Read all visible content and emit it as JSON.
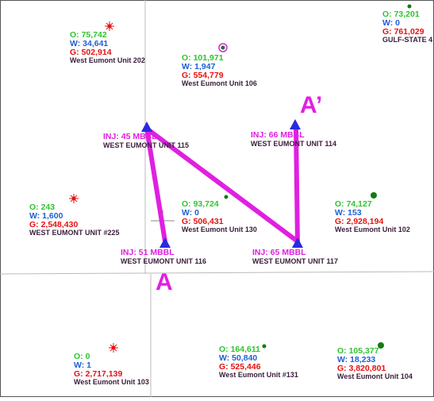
{
  "wells": [
    {
      "o": "O: 75,742",
      "w": "W: 34,641",
      "g": "G: 502,914",
      "name": "West Eumont Unit 202"
    },
    {
      "o": "O: 101,971",
      "w": "W: 1,947",
      "g": "G: 554,779",
      "name": "West Eumont Unit 106"
    },
    {
      "o": "O: 73,201",
      "w": "W: 0",
      "g": "G: 761,029",
      "name": "GULF-STATE 4"
    },
    {
      "inj": "INJ: 45 MBBL",
      "name": "WEST EUMONT UNIT 115"
    },
    {
      "inj": "INJ: 66 MBBL",
      "name": "WEST EUMONT UNIT 114"
    },
    {
      "o": "O: 243",
      "w": "W: 1,600",
      "g": "G: 2,548,430",
      "name": "WEST EUMONT UNIT #225"
    },
    {
      "o": "O: 93,724",
      "w": "W: 0",
      "g": "G: 506,431",
      "name": "West Eumont Unit 130"
    },
    {
      "o": "O: 74,127",
      "w": "W: 153",
      "g": "G: 2,928,194",
      "name": "West Eumont Unit 102"
    },
    {
      "inj": "INJ: 51 MBBL",
      "name": "WEST EUMONT UNIT 116"
    },
    {
      "inj": "INJ: 65 MBBL",
      "name": "WEST EUMONT UNIT 117"
    },
    {
      "o": "O: 0",
      "w": "W: 1",
      "g": "G: 2,717,139",
      "name": "West Eumont Unit 103"
    },
    {
      "o": "O: 164,611",
      "w": "W: 50,840",
      "g": "G: 525,446",
      "name": "West Eumont Unit #131"
    },
    {
      "o": "O: 105,377",
      "w": "W: 18,233",
      "g": "G: 3,820,801",
      "name": "West Eumont Unit 104"
    }
  ],
  "section_labels": {
    "start": "A",
    "end": "A’"
  }
}
